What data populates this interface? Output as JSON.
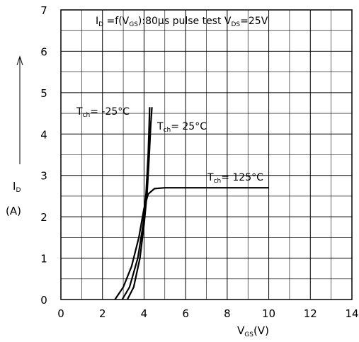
{
  "chart_data": {
    "type": "line",
    "title": "ID =f(VGS):80μs pulse test  VDS=25V",
    "xlabel": "VGS(V)",
    "ylabel": "ID (A)",
    "xlim": [
      0,
      14
    ],
    "ylim": [
      0,
      7
    ],
    "grid": "on",
    "xticks": [
      "0",
      "2",
      "4",
      "6",
      "8",
      "10",
      "12",
      "14"
    ],
    "yticks": [
      "0",
      "1",
      "2",
      "3",
      "4",
      "5",
      "6",
      "7"
    ],
    "series": [
      {
        "name": "Tch=-25°C",
        "x": [
          2.95,
          3.3,
          3.7,
          3.95,
          4.1,
          4.2,
          4.25,
          4.27
        ],
        "y": [
          0.0,
          0.3,
          1.0,
          1.8,
          2.6,
          3.5,
          4.3,
          4.65
        ]
      },
      {
        "name": "Tch=25°C",
        "x": [
          3.2,
          3.5,
          3.8,
          4.0,
          4.15,
          4.25,
          4.32,
          4.38
        ],
        "y": [
          0.0,
          0.3,
          1.0,
          1.8,
          2.6,
          3.5,
          4.2,
          4.65
        ]
      },
      {
        "name": "Tch=125°C",
        "x": [
          2.6,
          3.0,
          3.4,
          3.75,
          4.0,
          4.2,
          4.5,
          5.0,
          6.0,
          8.0,
          10.0
        ],
        "y": [
          0.0,
          0.3,
          0.8,
          1.5,
          2.2,
          2.55,
          2.68,
          2.7,
          2.7,
          2.7,
          2.7
        ]
      }
    ],
    "labels": {
      "title_main": "ID =f(VGS):80μs pulse test  VDS=25V",
      "xlabel_main": "VGS(V)",
      "ylabel_id": "ID",
      "ylabel_unit": "(A)",
      "tch_m25": "Tch=-25°C",
      "tch_25": "Tch=25°C",
      "tch_125": "Tch=125°C"
    }
  }
}
